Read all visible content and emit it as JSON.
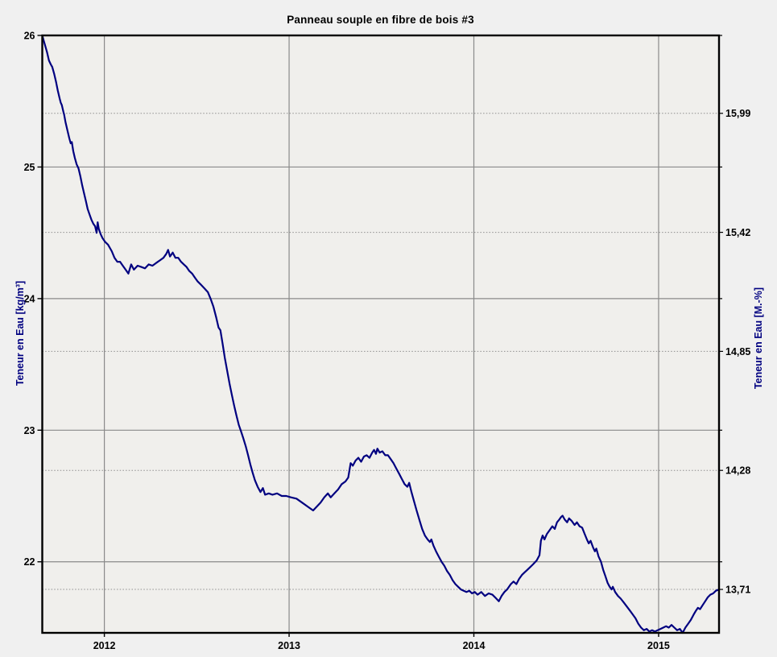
{
  "title": "Panneau souple en fibre de bois #3",
  "colors": {
    "background": "#f0f0f0",
    "plot_background": "#f0efec",
    "series": "#000080",
    "grid_solid": "#8a8a8a",
    "grid_dotted": "#8f8f8f",
    "border": "#000000",
    "tick_text": "#000000",
    "axis_title_text": "#000080"
  },
  "chart_data": {
    "type": "line",
    "title": "Panneau souple en fibre de bois #3",
    "legend_position": "none",
    "grid": "on",
    "x_axis": {
      "range": [
        2011.664,
        2015.327
      ],
      "ticks": [
        2012,
        2013,
        2014,
        2015
      ],
      "tick_labels": [
        "2012",
        "2013",
        "2014",
        "2015"
      ]
    },
    "y_left": {
      "label": "Teneur en Eau [kg/m³]",
      "range": [
        21.46,
        26.0
      ],
      "ticks": [
        26,
        25,
        24,
        23,
        22
      ],
      "tick_labels": [
        "26",
        "25",
        "24",
        "23",
        "22"
      ]
    },
    "y_right": {
      "label": "Teneur en Eau [M.-%]",
      "range": [
        13.502,
        16.363
      ],
      "ticks": [
        15.99,
        15.42,
        14.85,
        14.28,
        13.71
      ],
      "tick_labels": [
        "15,99",
        "15,42",
        "14,85",
        "14,28",
        "13,71"
      ]
    },
    "series": [
      {
        "name": "Teneur en Eau",
        "color": "#000080",
        "points": [
          [
            2011.664,
            26.0
          ],
          [
            2011.672,
            25.96
          ],
          [
            2011.68,
            25.92
          ],
          [
            2011.69,
            25.87
          ],
          [
            2011.7,
            25.81
          ],
          [
            2011.71,
            25.78
          ],
          [
            2011.718,
            25.76
          ],
          [
            2011.728,
            25.71
          ],
          [
            2011.738,
            25.65
          ],
          [
            2011.748,
            25.58
          ],
          [
            2011.758,
            25.52
          ],
          [
            2011.764,
            25.49
          ],
          [
            2011.77,
            25.47
          ],
          [
            2011.778,
            25.42
          ],
          [
            2011.782,
            25.4
          ],
          [
            2011.79,
            25.34
          ],
          [
            2011.8,
            25.28
          ],
          [
            2011.81,
            25.22
          ],
          [
            2011.818,
            25.18
          ],
          [
            2011.824,
            25.19
          ],
          [
            2011.832,
            25.12
          ],
          [
            2011.84,
            25.07
          ],
          [
            2011.85,
            25.02
          ],
          [
            2011.86,
            24.99
          ],
          [
            2011.87,
            24.93
          ],
          [
            2011.88,
            24.86
          ],
          [
            2011.89,
            24.8
          ],
          [
            2011.9,
            24.74
          ],
          [
            2011.91,
            24.68
          ],
          [
            2011.92,
            24.64
          ],
          [
            2011.93,
            24.6
          ],
          [
            2011.94,
            24.57
          ],
          [
            2011.95,
            24.55
          ],
          [
            2011.958,
            24.5
          ],
          [
            2011.964,
            24.58
          ],
          [
            2011.97,
            24.53
          ],
          [
            2011.98,
            24.49
          ],
          [
            2011.99,
            24.46
          ],
          [
            2012.005,
            24.43
          ],
          [
            2012.02,
            24.41
          ],
          [
            2012.04,
            24.36
          ],
          [
            2012.055,
            24.31
          ],
          [
            2012.07,
            24.28
          ],
          [
            2012.085,
            24.28
          ],
          [
            2012.1,
            24.25
          ],
          [
            2012.115,
            24.22
          ],
          [
            2012.13,
            24.19
          ],
          [
            2012.145,
            24.26
          ],
          [
            2012.16,
            24.22
          ],
          [
            2012.18,
            24.25
          ],
          [
            2012.2,
            24.24
          ],
          [
            2012.22,
            24.23
          ],
          [
            2012.24,
            24.26
          ],
          [
            2012.26,
            24.25
          ],
          [
            2012.28,
            24.27
          ],
          [
            2012.3,
            24.29
          ],
          [
            2012.32,
            24.31
          ],
          [
            2012.335,
            24.34
          ],
          [
            2012.345,
            24.37
          ],
          [
            2012.355,
            24.32
          ],
          [
            2012.37,
            24.35
          ],
          [
            2012.385,
            24.31
          ],
          [
            2012.4,
            24.31
          ],
          [
            2012.415,
            24.28
          ],
          [
            2012.43,
            24.26
          ],
          [
            2012.445,
            24.24
          ],
          [
            2012.46,
            24.21
          ],
          [
            2012.475,
            24.19
          ],
          [
            2012.49,
            24.16
          ],
          [
            2012.505,
            24.13
          ],
          [
            2012.52,
            24.11
          ],
          [
            2012.54,
            24.08
          ],
          [
            2012.56,
            24.05
          ],
          [
            2012.575,
            24.0
          ],
          [
            2012.59,
            23.94
          ],
          [
            2012.605,
            23.86
          ],
          [
            2012.618,
            23.78
          ],
          [
            2012.628,
            23.76
          ],
          [
            2012.64,
            23.66
          ],
          [
            2012.652,
            23.55
          ],
          [
            2012.665,
            23.45
          ],
          [
            2012.678,
            23.35
          ],
          [
            2012.69,
            23.27
          ],
          [
            2012.702,
            23.19
          ],
          [
            2012.715,
            23.11
          ],
          [
            2012.728,
            23.04
          ],
          [
            2012.74,
            22.99
          ],
          [
            2012.752,
            22.94
          ],
          [
            2012.765,
            22.88
          ],
          [
            2012.778,
            22.81
          ],
          [
            2012.79,
            22.74
          ],
          [
            2012.802,
            22.68
          ],
          [
            2012.815,
            22.62
          ],
          [
            2012.83,
            22.57
          ],
          [
            2012.845,
            22.53
          ],
          [
            2012.858,
            22.56
          ],
          [
            2012.87,
            22.51
          ],
          [
            2012.89,
            22.52
          ],
          [
            2012.91,
            22.51
          ],
          [
            2012.935,
            22.52
          ],
          [
            2012.96,
            22.5
          ],
          [
            2012.985,
            22.5
          ],
          [
            2013.01,
            22.49
          ],
          [
            2013.04,
            22.48
          ],
          [
            2013.07,
            22.45
          ],
          [
            2013.1,
            22.42
          ],
          [
            2013.13,
            22.39
          ],
          [
            2013.15,
            22.42
          ],
          [
            2013.17,
            22.45
          ],
          [
            2013.19,
            22.49
          ],
          [
            2013.21,
            22.52
          ],
          [
            2013.225,
            22.49
          ],
          [
            2013.245,
            22.52
          ],
          [
            2013.265,
            22.55
          ],
          [
            2013.285,
            22.59
          ],
          [
            2013.305,
            22.61
          ],
          [
            2013.32,
            22.64
          ],
          [
            2013.333,
            22.75
          ],
          [
            2013.345,
            22.73
          ],
          [
            2013.36,
            22.77
          ],
          [
            2013.375,
            22.79
          ],
          [
            2013.39,
            22.76
          ],
          [
            2013.405,
            22.8
          ],
          [
            2013.42,
            22.81
          ],
          [
            2013.435,
            22.79
          ],
          [
            2013.45,
            22.83
          ],
          [
            2013.46,
            22.85
          ],
          [
            2013.47,
            22.82
          ],
          [
            2013.478,
            22.86
          ],
          [
            2013.49,
            22.83
          ],
          [
            2013.505,
            22.84
          ],
          [
            2013.52,
            22.81
          ],
          [
            2013.535,
            22.81
          ],
          [
            2013.55,
            22.78
          ],
          [
            2013.565,
            22.75
          ],
          [
            2013.58,
            22.71
          ],
          [
            2013.595,
            22.67
          ],
          [
            2013.61,
            22.63
          ],
          [
            2013.625,
            22.59
          ],
          [
            2013.64,
            22.57
          ],
          [
            2013.65,
            22.6
          ],
          [
            2013.662,
            22.53
          ],
          [
            2013.676,
            22.46
          ],
          [
            2013.69,
            22.39
          ],
          [
            2013.705,
            22.32
          ],
          [
            2013.72,
            22.25
          ],
          [
            2013.735,
            22.2
          ],
          [
            2013.75,
            22.17
          ],
          [
            2013.762,
            22.15
          ],
          [
            2013.77,
            22.17
          ],
          [
            2013.782,
            22.12
          ],
          [
            2013.795,
            22.08
          ],
          [
            2013.81,
            22.04
          ],
          [
            2013.825,
            22.0
          ],
          [
            2013.84,
            21.97
          ],
          [
            2013.855,
            21.93
          ],
          [
            2013.87,
            21.9
          ],
          [
            2013.885,
            21.86
          ],
          [
            2013.9,
            21.83
          ],
          [
            2013.915,
            21.81
          ],
          [
            2013.93,
            21.79
          ],
          [
            2013.945,
            21.78
          ],
          [
            2013.96,
            21.77
          ],
          [
            2013.975,
            21.78
          ],
          [
            2013.99,
            21.76
          ],
          [
            2014.005,
            21.77
          ],
          [
            2014.02,
            21.75
          ],
          [
            2014.04,
            21.77
          ],
          [
            2014.06,
            21.74
          ],
          [
            2014.08,
            21.76
          ],
          [
            2014.1,
            21.75
          ],
          [
            2014.115,
            21.73
          ],
          [
            2014.135,
            21.7
          ],
          [
            2014.15,
            21.74
          ],
          [
            2014.165,
            21.77
          ],
          [
            2014.18,
            21.79
          ],
          [
            2014.2,
            21.83
          ],
          [
            2014.215,
            21.85
          ],
          [
            2014.23,
            21.83
          ],
          [
            2014.245,
            21.87
          ],
          [
            2014.26,
            21.9
          ],
          [
            2014.275,
            21.92
          ],
          [
            2014.29,
            21.94
          ],
          [
            2014.305,
            21.96
          ],
          [
            2014.32,
            21.98
          ],
          [
            2014.34,
            22.01
          ],
          [
            2014.355,
            22.05
          ],
          [
            2014.363,
            22.16
          ],
          [
            2014.372,
            22.2
          ],
          [
            2014.382,
            22.17
          ],
          [
            2014.395,
            22.21
          ],
          [
            2014.41,
            22.24
          ],
          [
            2014.425,
            22.27
          ],
          [
            2014.438,
            22.25
          ],
          [
            2014.45,
            22.3
          ],
          [
            2014.462,
            22.32
          ],
          [
            2014.472,
            22.34
          ],
          [
            2014.48,
            22.35
          ],
          [
            2014.492,
            22.32
          ],
          [
            2014.505,
            22.3
          ],
          [
            2014.515,
            22.33
          ],
          [
            2014.53,
            22.31
          ],
          [
            2014.545,
            22.28
          ],
          [
            2014.558,
            22.3
          ],
          [
            2014.572,
            22.27
          ],
          [
            2014.586,
            22.26
          ],
          [
            2014.6,
            22.21
          ],
          [
            2014.612,
            22.17
          ],
          [
            2014.622,
            22.14
          ],
          [
            2014.632,
            22.16
          ],
          [
            2014.645,
            22.11
          ],
          [
            2014.655,
            22.08
          ],
          [
            2014.663,
            22.1
          ],
          [
            2014.675,
            22.04
          ],
          [
            2014.688,
            22.0
          ],
          [
            2014.7,
            21.94
          ],
          [
            2014.712,
            21.89
          ],
          [
            2014.724,
            21.84
          ],
          [
            2014.735,
            21.81
          ],
          [
            2014.745,
            21.79
          ],
          [
            2014.752,
            21.81
          ],
          [
            2014.765,
            21.77
          ],
          [
            2014.78,
            21.74
          ],
          [
            2014.795,
            21.72
          ],
          [
            2014.812,
            21.69
          ],
          [
            2014.828,
            21.66
          ],
          [
            2014.844,
            21.63
          ],
          [
            2014.86,
            21.6
          ],
          [
            2014.875,
            21.57
          ],
          [
            2014.89,
            21.53
          ],
          [
            2014.905,
            21.5
          ],
          [
            2014.92,
            21.48
          ],
          [
            2014.935,
            21.49
          ],
          [
            2014.95,
            21.47
          ],
          [
            2014.965,
            21.48
          ],
          [
            2014.98,
            21.47
          ],
          [
            2014.995,
            21.48
          ],
          [
            2015.01,
            21.49
          ],
          [
            2015.025,
            21.5
          ],
          [
            2015.04,
            21.51
          ],
          [
            2015.055,
            21.5
          ],
          [
            2015.07,
            21.52
          ],
          [
            2015.085,
            21.5
          ],
          [
            2015.1,
            21.48
          ],
          [
            2015.115,
            21.49
          ],
          [
            2015.13,
            21.46
          ],
          [
            2015.145,
            21.5
          ],
          [
            2015.16,
            21.53
          ],
          [
            2015.175,
            21.56
          ],
          [
            2015.19,
            21.6
          ],
          [
            2015.203,
            21.63
          ],
          [
            2015.213,
            21.65
          ],
          [
            2015.224,
            21.64
          ],
          [
            2015.238,
            21.67
          ],
          [
            2015.252,
            21.7
          ],
          [
            2015.266,
            21.73
          ],
          [
            2015.28,
            21.75
          ],
          [
            2015.295,
            21.76
          ],
          [
            2015.31,
            21.78
          ],
          [
            2015.327,
            21.79
          ]
        ]
      }
    ]
  }
}
